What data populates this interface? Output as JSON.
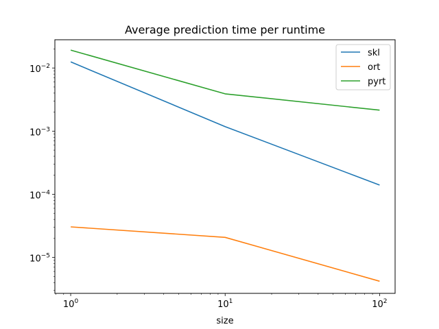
{
  "chart_data": {
    "type": "line",
    "title": "Average prediction time per runtime",
    "xlabel": "size",
    "ylabel": "",
    "xscale": "log",
    "yscale": "log",
    "xlim": [
      0.79,
      126
    ],
    "ylim": [
      2.7e-06,
      0.028
    ],
    "grid": false,
    "legend": "top-right",
    "x": [
      1,
      10,
      100
    ],
    "x_ticks": [
      {
        "value": 1,
        "base": "10",
        "exp": "0"
      },
      {
        "value": 10,
        "base": "10",
        "exp": "1"
      },
      {
        "value": 100,
        "base": "10",
        "exp": "2"
      }
    ],
    "y_ticks": [
      {
        "value": 1e-05,
        "base": "10",
        "exp": "−5"
      },
      {
        "value": 0.0001,
        "base": "10",
        "exp": "−4"
      },
      {
        "value": 0.001,
        "base": "10",
        "exp": "−3"
      },
      {
        "value": 0.01,
        "base": "10",
        "exp": "−2"
      }
    ],
    "series": [
      {
        "name": "skl",
        "color": "#1f77b4",
        "values": [
          0.0125,
          0.00118,
          0.00014
        ]
      },
      {
        "name": "ort",
        "color": "#ff7f0e",
        "values": [
          3.05e-05,
          2.08e-05,
          4.2e-06
        ]
      },
      {
        "name": "pyrt",
        "color": "#2ca02c",
        "values": [
          0.0192,
          0.0039,
          0.00215
        ]
      }
    ]
  }
}
